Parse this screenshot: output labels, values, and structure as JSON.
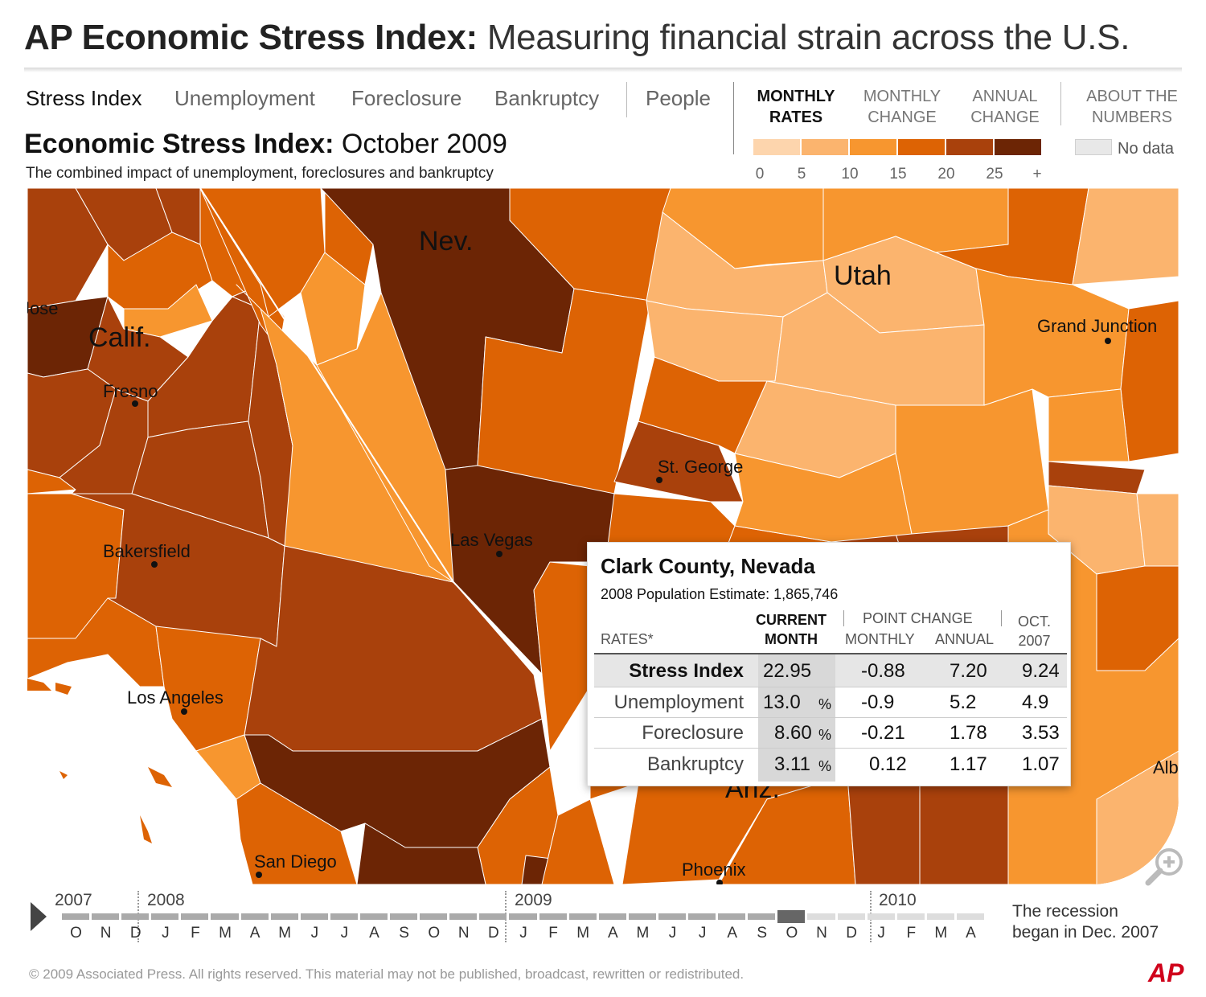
{
  "header": {
    "title_bold": "AP Economic Stress Index:",
    "title_rest": "Measuring financial strain across the U.S."
  },
  "nav": {
    "tabs": [
      "Stress Index",
      "Unemployment",
      "Foreclosure",
      "Bankruptcy",
      "People"
    ],
    "modes": [
      {
        "line1": "MONTHLY",
        "line2": "RATES"
      },
      {
        "line1": "MONTHLY",
        "line2": "CHANGE"
      },
      {
        "line1": "ANNUAL",
        "line2": "CHANGE"
      }
    ],
    "about": {
      "line1": "ABOUT THE",
      "line2": "NUMBERS"
    }
  },
  "map_header": {
    "title_bold": "Economic Stress Index:",
    "title_date": "October 2009",
    "subtitle": "The combined impact of unemployment, foreclosures and bankruptcy"
  },
  "legend": {
    "colors": [
      "#fdd5ad",
      "#fbb46e",
      "#f7962f",
      "#dd6304",
      "#a9410c",
      "#6c2505"
    ],
    "ticks": [
      "0",
      "5",
      "10",
      "15",
      "20",
      "25",
      "+"
    ],
    "no_data_color": "#e8e8e8",
    "no_data_label": "No data"
  },
  "map": {
    "state_labels": [
      "Nev.",
      "Calif.",
      "Utah",
      "Ariz."
    ],
    "cities": [
      "Fresno",
      "Bakersfield",
      "Los Angeles",
      "San Diego",
      "Las Vegas",
      "St. George",
      "Grand Junction",
      "Phoenix"
    ],
    "edge_labels": [
      "Jose",
      "Alb"
    ]
  },
  "popup": {
    "county": "Clark County, Nevada",
    "population_label": "2008 Population Estimate:",
    "population_value": "1,865,746",
    "col_rates": "RATES*",
    "col_current_1": "CURRENT",
    "col_current_2": "MONTH",
    "col_point_change": "POINT CHANGE",
    "col_monthly": "MONTHLY",
    "col_annual": "ANNUAL",
    "col_oct_1": "OCT.",
    "col_oct_2": "2007",
    "rows": [
      {
        "label": "Stress Index",
        "current": "22.95",
        "pct": "",
        "monthly": "-0.88",
        "annual": "7.20",
        "oct2007": "9.24"
      },
      {
        "label": "Unemployment",
        "current": "13.0",
        "pct": "%",
        "monthly": "-0.9",
        "annual": "5.2",
        "oct2007": "4.9"
      },
      {
        "label": "Foreclosure",
        "current": "8.60",
        "pct": "%",
        "monthly": "-0.21",
        "annual": "1.78",
        "oct2007": "3.53"
      },
      {
        "label": "Bankruptcy",
        "current": "3.11",
        "pct": "%",
        "monthly": "0.12",
        "annual": "1.17",
        "oct2007": "1.07"
      }
    ]
  },
  "timeline": {
    "years": [
      "2007",
      "2008",
      "2009",
      "2010"
    ],
    "months": [
      "O",
      "N",
      "D",
      "J",
      "F",
      "M",
      "A",
      "M",
      "J",
      "J",
      "A",
      "S",
      "O",
      "N",
      "D",
      "J",
      "F",
      "M",
      "A",
      "M",
      "J",
      "J",
      "A",
      "S",
      "O",
      "N",
      "D",
      "J",
      "F",
      "M",
      "A"
    ],
    "selected_index": 24,
    "recession_line1": "The recession",
    "recession_line2": "began in Dec. 2007"
  },
  "footer": {
    "copyright": "©  2009 Associated Press. All rights reserved. This material may not be published, broadcast, rewritten or redistributed.",
    "logo": "AP"
  }
}
